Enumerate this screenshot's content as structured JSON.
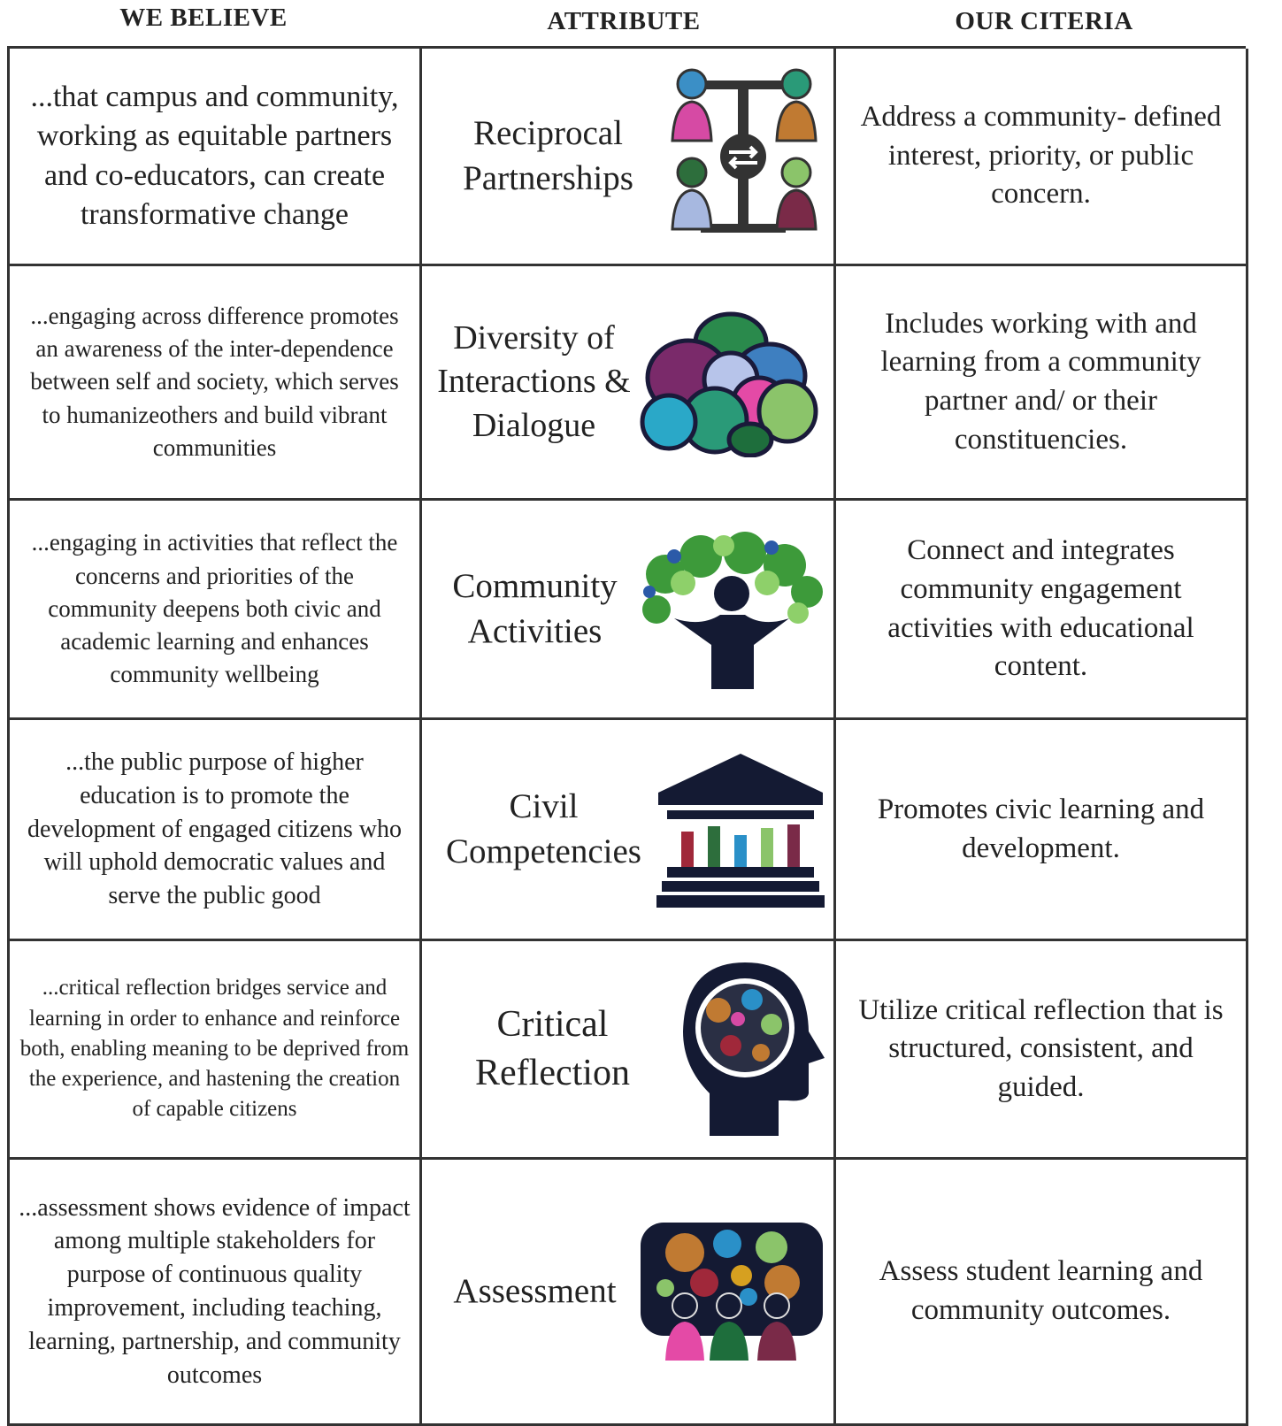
{
  "header": {
    "columns": [
      "WE BELIEVE",
      "ATTRIBUTE",
      "OUR CITERIA"
    ]
  },
  "table": {
    "rows": [
      [
        "...that campus and community, working as equitable partners and co-educators, can create transformative change",
        "Reciprocal Partnerships",
        "Address a community- defined interest, priority, or public concern."
      ],
      [
        "...engaging across difference promotes an awareness of the inter-dependence between self and society, which serves to humanizeothers and build vibrant communities",
        "Diversity of Interactions & Dialogue",
        "Includes working with and learning from a community partner and/ or their constituencies."
      ],
      [
        "...engaging in activities that reflect the concerns and priorities of the community deepens both civic and academic learning and enhances community wellbeing",
        "Community Activities",
        "Connect and integrates community engagement activities with educational content."
      ],
      [
        "...the public purpose of higher education is to promote the development of engaged citizens who will uphold democratic values and serve the public good",
        "Civil Competencies",
        "Promotes civic learning and development."
      ],
      [
        "...critical reflection bridges service and learning in order to enhance and reinforce both, enabling meaning to be deprived from the experience, and hastening the creation of capable citizens",
        "Critical Reflection",
        "Utilize critical reflection that is structured, consistent, and guided."
      ],
      [
        "...assessment shows evidence of impact among multiple stakeholders for purpose of continuous quality improvement, including teaching, learning, partnership, and community outcomes",
        "Assessment",
        "Assess student learning and community outcomes."
      ]
    ]
  }
}
